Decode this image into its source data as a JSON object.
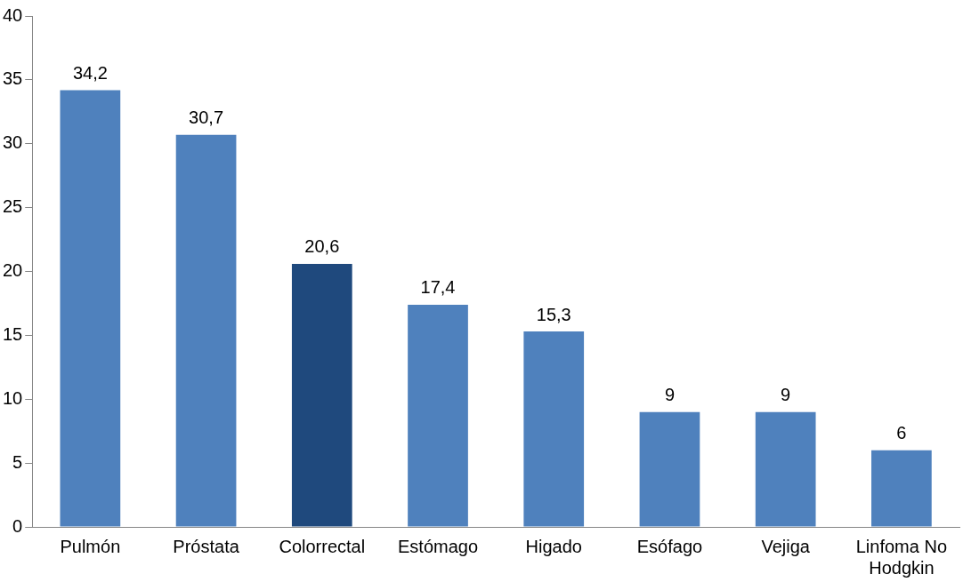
{
  "chart_data": {
    "type": "bar",
    "categories": [
      "Pulmón",
      "Próstata",
      "Colorrectal",
      "Estómago",
      "Higado",
      "Esófago",
      "Vejiga",
      "Linfoma No Hodgkin"
    ],
    "values": [
      34.2,
      30.7,
      20.6,
      17.4,
      15.3,
      9,
      9,
      6
    ],
    "value_labels": [
      "34,2",
      "30,7",
      "20,6",
      "17,4",
      "15,3",
      "9",
      "9",
      "6"
    ],
    "colors": [
      "#4f81bd",
      "#4f81bd",
      "#1f497d",
      "#4f81bd",
      "#4f81bd",
      "#4f81bd",
      "#4f81bd",
      "#4f81bd"
    ],
    "ylim": [
      0,
      40
    ],
    "yticks": [
      0,
      5,
      10,
      15,
      20,
      25,
      30,
      35,
      40
    ],
    "grid": false,
    "legend": false
  }
}
